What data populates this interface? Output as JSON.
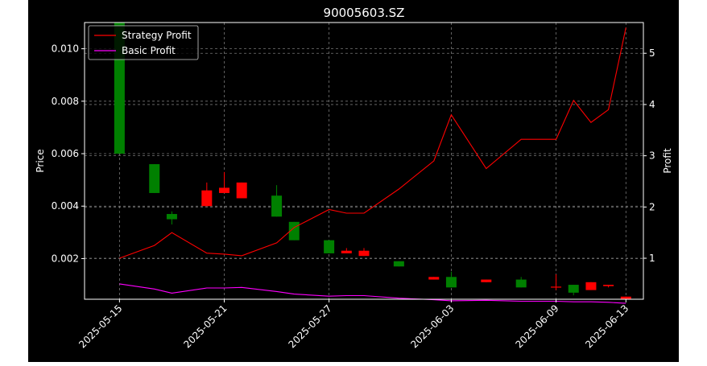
{
  "chart_data": {
    "type": "candlestick",
    "title": "90005603.SZ",
    "xlabel": "",
    "ylabel_left": "Price",
    "ylabel_right": "Profit",
    "ylim_left": [
      0.00045,
      0.011
    ],
    "ylim_right": [
      0.2,
      5.6
    ],
    "xlim": [
      "2025-05-13",
      "2025-06-14"
    ],
    "x_ticks": [
      "2025-05-15",
      "2025-05-21",
      "2025-05-27",
      "2025-06-03",
      "2025-06-09",
      "2025-06-13"
    ],
    "y_ticks_left": [
      "0.002",
      "0.004",
      "0.006",
      "0.008",
      "0.010"
    ],
    "y_ticks_right": [
      "1",
      "2",
      "3",
      "4",
      "5"
    ],
    "grid": true,
    "legend_position": "top-left",
    "colors": {
      "background": "#000000",
      "up": "#ff0000",
      "down": "#008000",
      "strategy": "#ff0000",
      "basic": "#ff00ff",
      "grid": "#777777",
      "axes": "#ffffff"
    },
    "candles": [
      {
        "date": "2025-05-15",
        "open": 0.011,
        "close": 0.006,
        "high": 0.011,
        "low": 0.006
      },
      {
        "date": "2025-05-17",
        "open": 0.0056,
        "close": 0.0045,
        "high": 0.0056,
        "low": 0.0045
      },
      {
        "date": "2025-05-18",
        "open": 0.0037,
        "close": 0.0035,
        "high": 0.0038,
        "low": 0.0033
      },
      {
        "date": "2025-05-20",
        "open": 0.004,
        "close": 0.0046,
        "high": 0.0049,
        "low": 0.004
      },
      {
        "date": "2025-05-21",
        "open": 0.0045,
        "close": 0.0047,
        "high": 0.0053,
        "low": 0.0045
      },
      {
        "date": "2025-05-22",
        "open": 0.0043,
        "close": 0.0049,
        "high": 0.0049,
        "low": 0.0043
      },
      {
        "date": "2025-05-24",
        "open": 0.0044,
        "close": 0.0036,
        "high": 0.0048,
        "low": 0.0036
      },
      {
        "date": "2025-05-25",
        "open": 0.0034,
        "close": 0.0027,
        "high": 0.0034,
        "low": 0.0027
      },
      {
        "date": "2025-05-27",
        "open": 0.0027,
        "close": 0.0022,
        "high": 0.0027,
        "low": 0.0022
      },
      {
        "date": "2025-05-28",
        "open": 0.0022,
        "close": 0.0023,
        "high": 0.0024,
        "low": 0.0022
      },
      {
        "date": "2025-05-29",
        "open": 0.0021,
        "close": 0.0023,
        "high": 0.0024,
        "low": 0.0021
      },
      {
        "date": "2025-05-31",
        "open": 0.0019,
        "close": 0.0017,
        "high": 0.0019,
        "low": 0.0017
      },
      {
        "date": "2025-06-02",
        "open": 0.0012,
        "close": 0.0013,
        "high": 0.0013,
        "low": 0.0012
      },
      {
        "date": "2025-06-03",
        "open": 0.0013,
        "close": 0.0009,
        "high": 0.0015,
        "low": 0.0009
      },
      {
        "date": "2025-06-05",
        "open": 0.0011,
        "close": 0.0012,
        "high": 0.0012,
        "low": 0.0011
      },
      {
        "date": "2025-06-07",
        "open": 0.0012,
        "close": 0.0009,
        "high": 0.0013,
        "low": 0.0009
      },
      {
        "date": "2025-06-09",
        "open": 0.0009,
        "close": 0.00093,
        "high": 0.0014,
        "low": 0.0008
      },
      {
        "date": "2025-06-10",
        "open": 0.001,
        "close": 0.0007,
        "high": 0.001,
        "low": 0.0006
      },
      {
        "date": "2025-06-11",
        "open": 0.0008,
        "close": 0.0011,
        "high": 0.0011,
        "low": 0.0008
      },
      {
        "date": "2025-06-12",
        "open": 0.00095,
        "close": 0.001,
        "high": 0.001,
        "low": 0.0009
      },
      {
        "date": "2025-06-13",
        "open": 0.00045,
        "close": 0.00055,
        "high": 0.00055,
        "low": 0.00045
      }
    ],
    "series": [
      {
        "name": "Strategy Profit",
        "color": "#ff0000",
        "points": [
          [
            "2025-05-15",
            1.0
          ],
          [
            "2025-05-17",
            1.25
          ],
          [
            "2025-05-18",
            1.5
          ],
          [
            "2025-05-20",
            1.1
          ],
          [
            "2025-05-21",
            1.08
          ],
          [
            "2025-05-22",
            1.05
          ],
          [
            "2025-05-24",
            1.3
          ],
          [
            "2025-05-25",
            1.6
          ],
          [
            "2025-05-27",
            1.95
          ],
          [
            "2025-05-28",
            1.88
          ],
          [
            "2025-05-29",
            1.88
          ],
          [
            "2025-05-31",
            2.35
          ],
          [
            "2025-06-02",
            2.9
          ],
          [
            "2025-06-03",
            3.8
          ],
          [
            "2025-06-05",
            2.75
          ],
          [
            "2025-06-07",
            3.32
          ],
          [
            "2025-06-09",
            3.32
          ],
          [
            "2025-06-10",
            4.08
          ],
          [
            "2025-06-11",
            3.65
          ],
          [
            "2025-06-12",
            3.9
          ],
          [
            "2025-06-13",
            5.5
          ]
        ]
      },
      {
        "name": "Basic Profit",
        "color": "#ff00ff",
        "points": [
          [
            "2025-05-15",
            0.5
          ],
          [
            "2025-05-17",
            0.4
          ],
          [
            "2025-05-18",
            0.32
          ],
          [
            "2025-05-20",
            0.42
          ],
          [
            "2025-05-21",
            0.42
          ],
          [
            "2025-05-22",
            0.43
          ],
          [
            "2025-05-24",
            0.35
          ],
          [
            "2025-05-25",
            0.3
          ],
          [
            "2025-05-27",
            0.26
          ],
          [
            "2025-05-28",
            0.27
          ],
          [
            "2025-05-29",
            0.27
          ],
          [
            "2025-05-31",
            0.22
          ],
          [
            "2025-06-02",
            0.19
          ],
          [
            "2025-06-03",
            0.17
          ],
          [
            "2025-06-05",
            0.18
          ],
          [
            "2025-06-07",
            0.16
          ],
          [
            "2025-06-09",
            0.16
          ],
          [
            "2025-06-10",
            0.15
          ],
          [
            "2025-06-11",
            0.15
          ],
          [
            "2025-06-12",
            0.14
          ],
          [
            "2025-06-13",
            0.12
          ]
        ]
      }
    ]
  }
}
